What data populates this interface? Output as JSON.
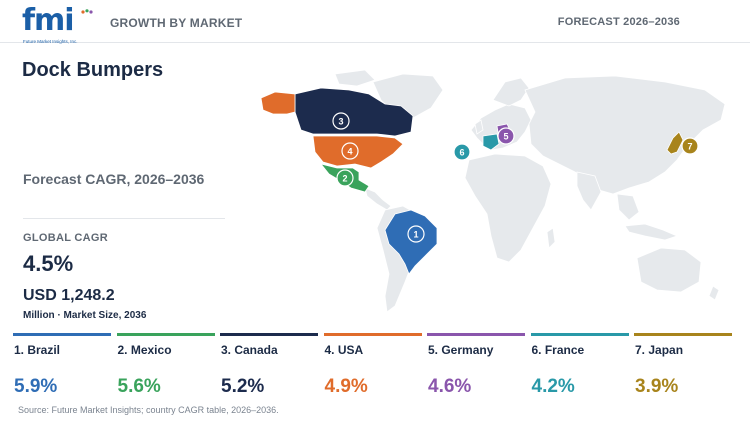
{
  "header": {
    "logo_text": "fmi",
    "logo_tagline": "Future Market Insights, Inc.",
    "left_label": "GROWTH BY MARKET",
    "right_label": "FORECAST 2026–2036"
  },
  "title": "Dock Bumpers",
  "forecast_label": "Forecast CAGR, 2026–2036",
  "global": {
    "label": "GLOBAL CAGR",
    "value": "4.5%",
    "market_value": "USD 1,248.2",
    "market_unit": "Million · Market Size, 2036"
  },
  "colors": {
    "Brazil": "#2f6db5",
    "Mexico": "#3aa35c",
    "Canada": "#1c2b4d",
    "USA": "#e06c2b",
    "Germany": "#8a56ac",
    "France": "#2999a8",
    "Japan": "#a8841c",
    "land": "#e6e9ec"
  },
  "chart_data": {
    "type": "map",
    "metric": "CAGR 2026–2036",
    "unit": "%",
    "series": [
      {
        "rank": 1,
        "country": "Brazil",
        "label": "1. Brazil",
        "value": 5.9,
        "display": "5.9%"
      },
      {
        "rank": 2,
        "country": "Mexico",
        "label": "2. Mexico",
        "value": 5.6,
        "display": "5.6%"
      },
      {
        "rank": 3,
        "country": "Canada",
        "label": "3. Canada",
        "value": 5.2,
        "display": "5.2%"
      },
      {
        "rank": 4,
        "country": "USA",
        "label": "4. USA",
        "value": 4.9,
        "display": "4.9%"
      },
      {
        "rank": 5,
        "country": "Germany",
        "label": "5. Germany",
        "value": 4.6,
        "display": "4.6%"
      },
      {
        "rank": 6,
        "country": "France",
        "label": "6. France",
        "value": 4.2,
        "display": "4.2%"
      },
      {
        "rank": 7,
        "country": "Japan",
        "label": "7. Japan",
        "value": 3.9,
        "display": "3.9%"
      }
    ]
  },
  "source": "Source: Future Market Insights; country CAGR table, 2026–2036."
}
